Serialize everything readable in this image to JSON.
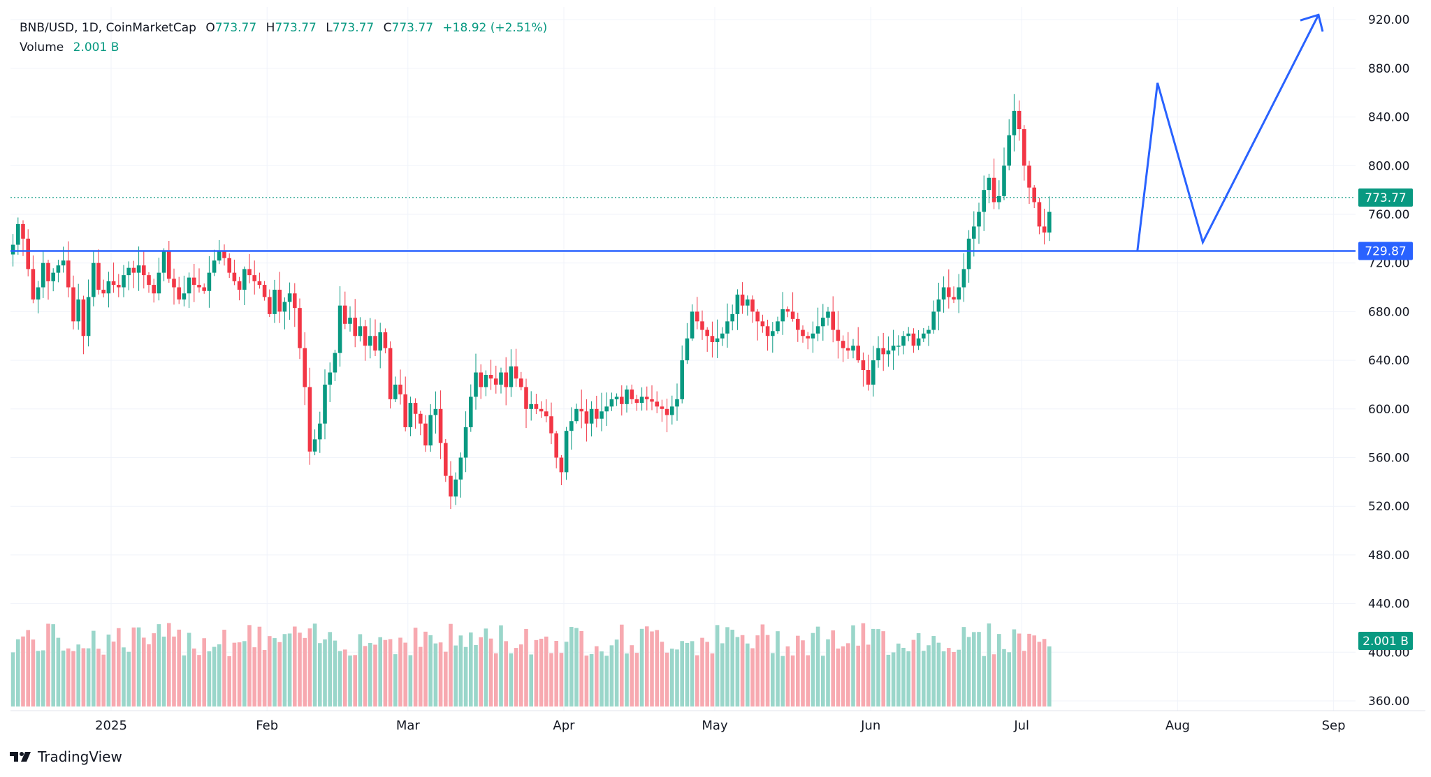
{
  "header": {
    "symbol": "BNB/USD, 1D, CoinMarketCap",
    "open_label": "O",
    "open": "773.77",
    "high_label": "H",
    "high": "773.77",
    "low_label": "L",
    "low": "773.77",
    "close_label": "C",
    "close": "773.77",
    "change": "+18.92 (+2.51%)",
    "volume_label": "Volume",
    "volume": "2.001 B"
  },
  "footer": {
    "brand": "TradingView"
  },
  "chart_data": {
    "type": "candlestick",
    "title": "BNB/USD, 1D, CoinMarketCap",
    "ylim": [
      343,
      933
    ],
    "y_ticks": [
      "920.00",
      "880.00",
      "840.00",
      "800.00",
      "760.00",
      "720.00",
      "680.00",
      "640.00",
      "600.00",
      "560.00",
      "520.00",
      "480.00",
      "440.00",
      "400.00",
      "360.00"
    ],
    "x_labels": [
      {
        "label": "2025",
        "day": 20
      },
      {
        "label": "Feb",
        "day": 51
      },
      {
        "label": "Mar",
        "day": 79
      },
      {
        "label": "Apr",
        "day": 110
      },
      {
        "label": "May",
        "day": 140
      },
      {
        "label": "Jun",
        "day": 171
      },
      {
        "label": "Jul",
        "day": 201
      },
      {
        "label": "Aug",
        "day": 232
      },
      {
        "label": "Sep",
        "day": 263
      }
    ],
    "date_range": [
      "2024-12-12",
      "2025-08-06"
    ],
    "last_price": "773.77",
    "last_volume": "2.001 B",
    "support_level": "729.87",
    "colors": {
      "up": "#089981",
      "down": "#F23645",
      "vol_up": "#9AD6CA",
      "vol_down": "#F7A9B0",
      "drawing": "#2962FF",
      "grid": "#F0F3FA"
    },
    "support_line": {
      "price": 729.87
    },
    "projection": [
      {
        "day": 224,
        "price": 730
      },
      {
        "day": 228,
        "price": 868
      },
      {
        "day": 237,
        "price": 737
      },
      {
        "day": 260,
        "price": 924
      }
    ],
    "closes": [
      735,
      752,
      740,
      715,
      690,
      700,
      720,
      705,
      712,
      718,
      722,
      700,
      672,
      690,
      660,
      692,
      720,
      698,
      695,
      705,
      702,
      700,
      710,
      716,
      712,
      718,
      710,
      702,
      695,
      712,
      730,
      707,
      700,
      690,
      695,
      708,
      702,
      700,
      697,
      712,
      722,
      730,
      724,
      712,
      705,
      698,
      715,
      710,
      705,
      702,
      692,
      678,
      698,
      680,
      688,
      695,
      683,
      650,
      618,
      565,
      575,
      588,
      620,
      630,
      646,
      685,
      670,
      675,
      660,
      668,
      652,
      660,
      648,
      663,
      650,
      608,
      620,
      612,
      585,
      605,
      596,
      588,
      570,
      595,
      600,
      572,
      545,
      528,
      542,
      560,
      585,
      610,
      630,
      618,
      628,
      625,
      620,
      630,
      618,
      635,
      625,
      618,
      600,
      604,
      600,
      598,
      594,
      580,
      560,
      548,
      582,
      590,
      600,
      598,
      588,
      600,
      592,
      598,
      602,
      608,
      610,
      604,
      616,
      608,
      605,
      610,
      608,
      606,
      602,
      600,
      595,
      602,
      608,
      640,
      658,
      680,
      672,
      665,
      660,
      655,
      658,
      662,
      672,
      678,
      694,
      685,
      690,
      680,
      672,
      668,
      660,
      664,
      672,
      682,
      680,
      674,
      665,
      660,
      658,
      662,
      668,
      675,
      680,
      665,
      656,
      650,
      648,
      652,
      640,
      632,
      620,
      640,
      650,
      645,
      648,
      652,
      652,
      660,
      662,
      652,
      658,
      662,
      665,
      680,
      690,
      700,
      692,
      690,
      700,
      715,
      740,
      750,
      762,
      780,
      790,
      770,
      775,
      800,
      825,
      845,
      830,
      800,
      782,
      770,
      750,
      745,
      762
    ],
    "dense_volume_segments": [
      {
        "from": 0,
        "to": 50,
        "level": 0.55
      },
      {
        "from": 51,
        "to": 60,
        "level": 0.6
      },
      {
        "from": 61,
        "to": 120,
        "level": 0.5
      },
      {
        "from": 121,
        "to": 180,
        "level": 0.45
      },
      {
        "from": 181,
        "to": 215,
        "level": 0.6
      }
    ]
  }
}
